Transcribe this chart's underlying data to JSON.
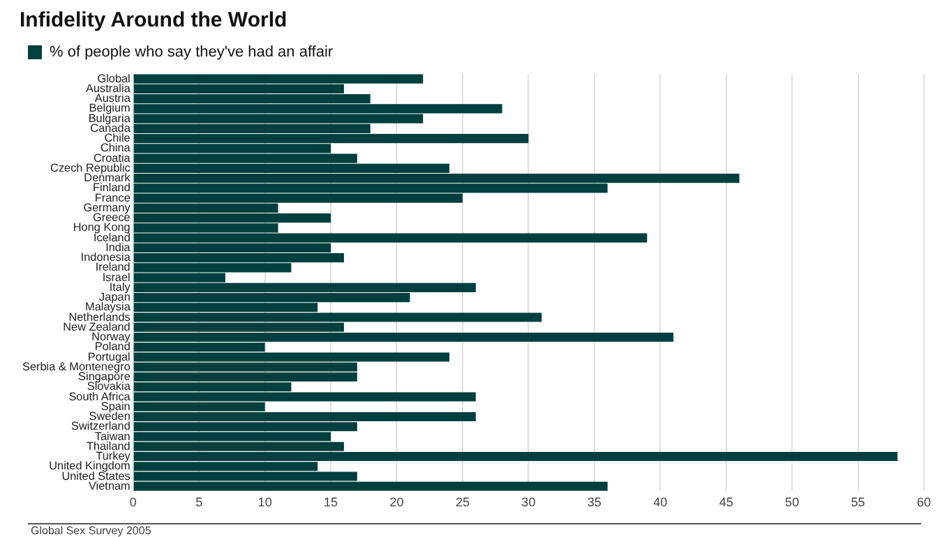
{
  "chart_data": {
    "type": "bar",
    "orientation": "horizontal",
    "title": "Infidelity Around the World",
    "categories": [
      "Global",
      "Australia",
      "Austria",
      "Belgium",
      "Bulgaria",
      "Canada",
      "Chile",
      "China",
      "Croatia",
      "Czech Republic",
      "Denmark",
      "Finland",
      "France",
      "Germany",
      "Greece",
      "Hong Kong",
      "Iceland",
      "India",
      "Indonesia",
      "Ireland",
      "Israel",
      "Italy",
      "Japan",
      "Malaysia",
      "Netherlands",
      "New Zealand",
      "Norway",
      "Poland",
      "Portugal",
      "Serbia & Montenegro",
      "Singapore",
      "Slovakia",
      "South Africa",
      "Spain",
      "Sweden",
      "Switzerland",
      "Taiwan",
      "Thailand",
      "Turkey",
      "United Kingdom",
      "United States",
      "Vietnam"
    ],
    "series": [
      {
        "name": "% of people who say they've had an affair",
        "color": "#003f3f",
        "values": [
          22,
          16,
          18,
          28,
          22,
          18,
          30,
          15,
          17,
          24,
          46,
          36,
          25,
          11,
          15,
          11,
          39,
          15,
          16,
          12,
          7,
          26,
          21,
          14,
          31,
          16,
          41,
          10,
          24,
          17,
          17,
          12,
          26,
          10,
          26,
          17,
          15,
          16,
          58,
          14,
          17,
          36
        ]
      }
    ],
    "xlim": [
      0,
      60
    ],
    "xticks": [
      0,
      5,
      10,
      15,
      20,
      25,
      30,
      35,
      40,
      45,
      50,
      55,
      60
    ],
    "grid": "x",
    "legend": "top left",
    "annotations": [
      "Global Sex Survey 2005"
    ]
  }
}
